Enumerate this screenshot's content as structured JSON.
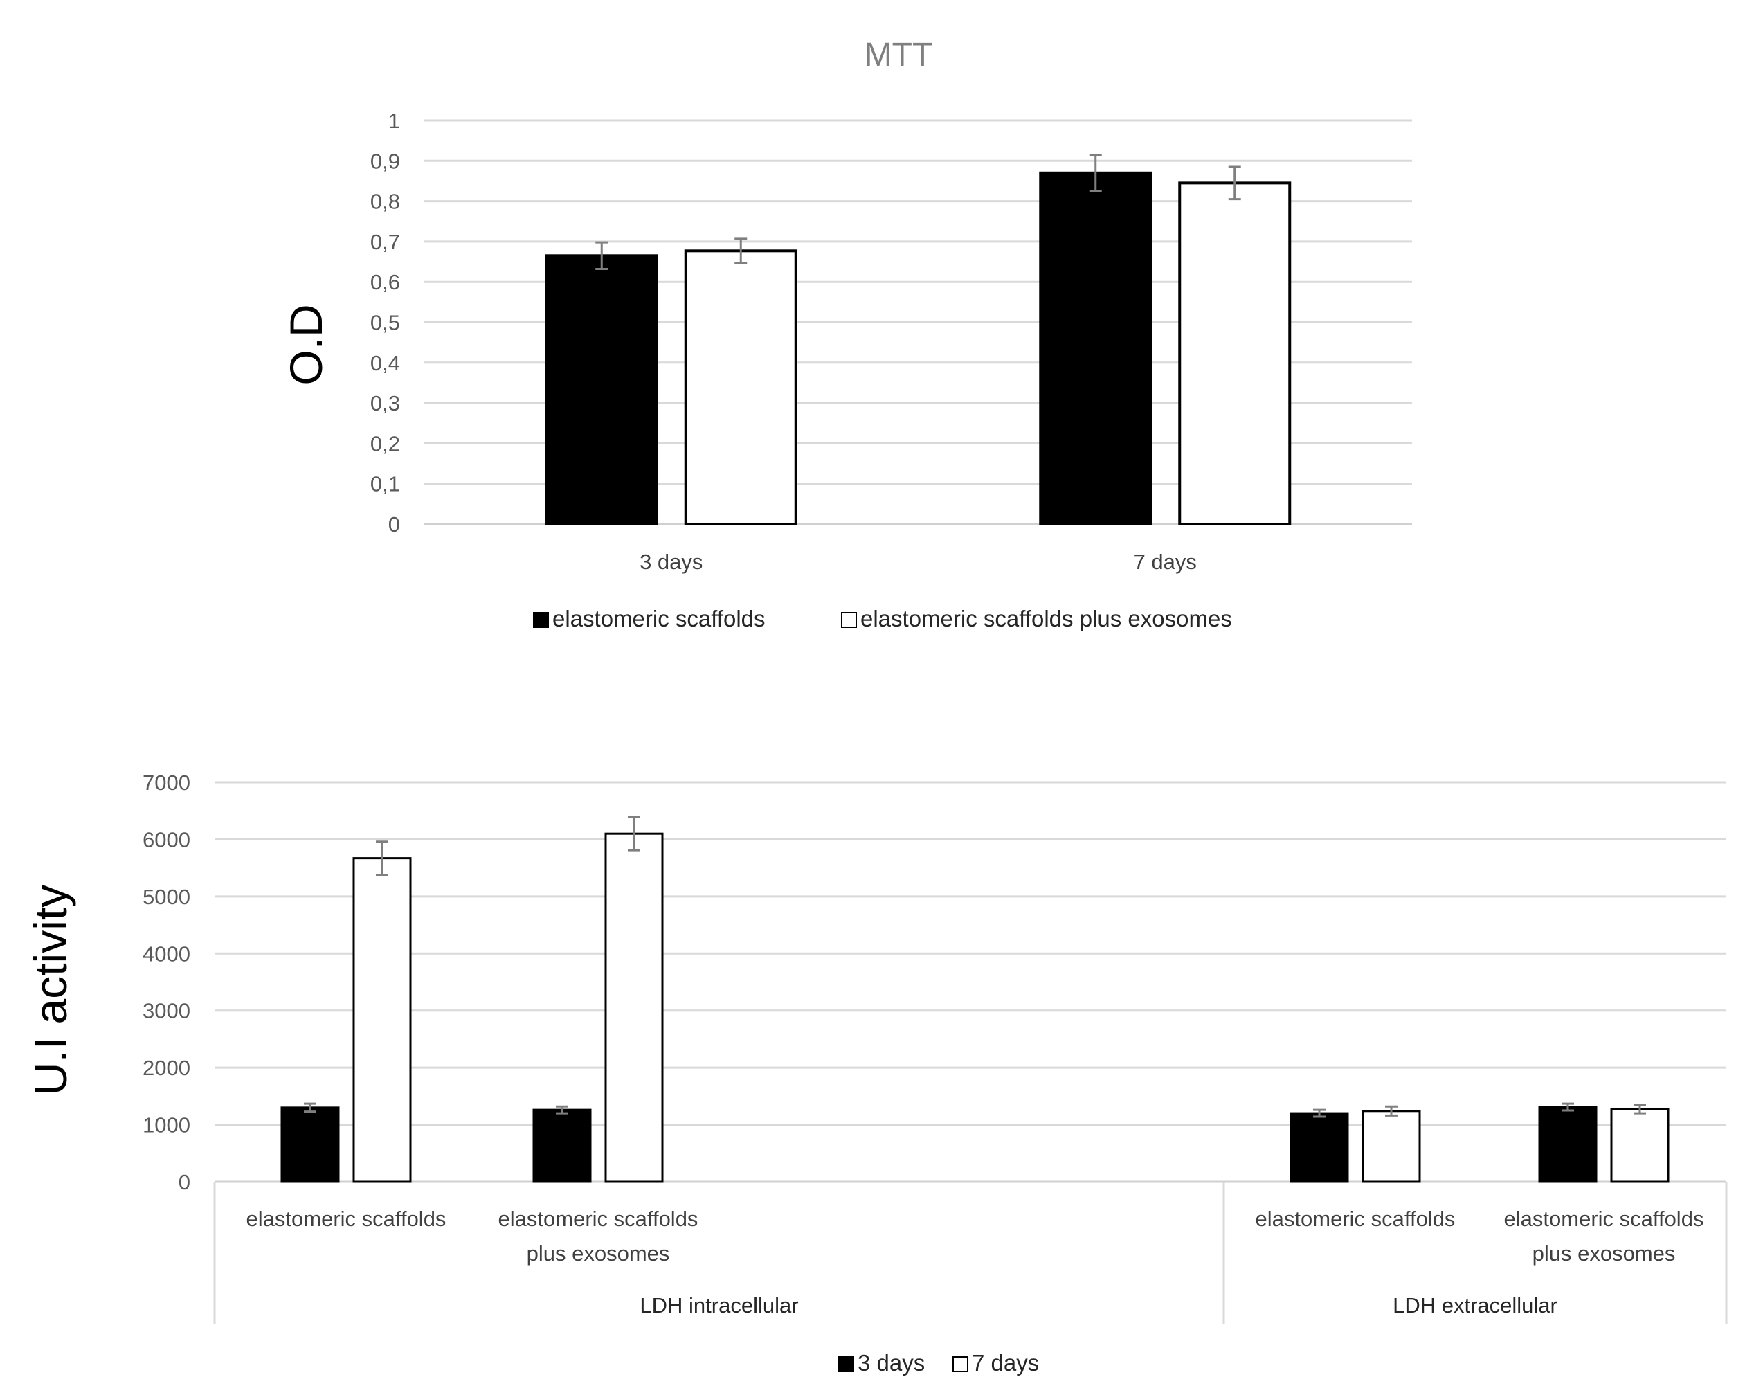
{
  "chart_data": [
    {
      "type": "bar",
      "title": "MTT",
      "ylabel": "O.D",
      "xlabel": "",
      "ylim": [
        0,
        1
      ],
      "yticks": [
        "0",
        "0,1",
        "0,2",
        "0,3",
        "0,4",
        "0,5",
        "0,6",
        "0,7",
        "0,8",
        "0,9",
        "1"
      ],
      "grid": true,
      "categories": [
        "3 days",
        "7 days"
      ],
      "series": [
        {
          "name": "elastomeric scaffolds",
          "color": "#000000",
          "values": [
            0.665,
            0.87
          ],
          "errors": [
            0.033,
            0.045
          ]
        },
        {
          "name": "elastomeric scaffolds plus exosomes",
          "color": "#ffffff",
          "values": [
            0.677,
            0.845
          ],
          "errors": [
            0.03,
            0.04
          ]
        }
      ],
      "legend_position": "bottom"
    },
    {
      "type": "bar",
      "title": "",
      "ylabel": "U.I activity",
      "xlabel": "",
      "ylim": [
        0,
        7000
      ],
      "yticks": [
        "0",
        "1000",
        "2000",
        "3000",
        "4000",
        "5000",
        "6000",
        "7000"
      ],
      "grid": true,
      "groups": [
        {
          "label": "LDH intracellular",
          "categories": [
            [
              "elastomeric scaffolds"
            ],
            [
              "elastomeric scaffolds",
              "plus exosomes"
            ]
          ]
        },
        {
          "label": "LDH extracellular",
          "categories": [
            [
              "elastomeric scaffolds"
            ],
            [
              "elastomeric scaffolds",
              "plus exosomes"
            ]
          ]
        }
      ],
      "series": [
        {
          "name": "3 days",
          "color": "#000000",
          "values": [
            1300,
            1260,
            1200,
            1310
          ],
          "errors": [
            70,
            60,
            60,
            60
          ]
        },
        {
          "name": "7 days",
          "color": "#ffffff",
          "values": [
            5670,
            6100,
            1240,
            1270
          ],
          "errors": [
            290,
            290,
            80,
            70
          ]
        }
      ],
      "legend_position": "bottom"
    }
  ]
}
